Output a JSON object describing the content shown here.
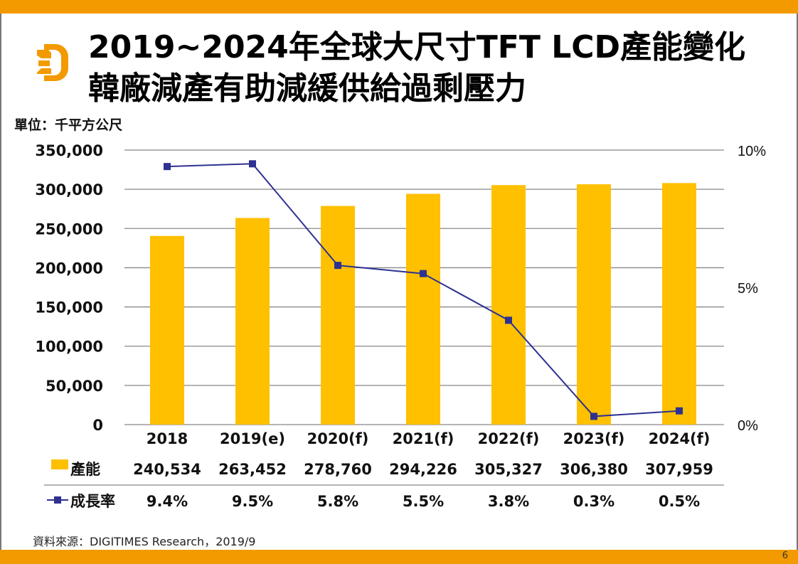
{
  "header": {
    "title_line1": "2019~2024年全球大尺寸TFT LCD產能變化",
    "title_line2": "韓廠減產有助減緩供給過剩壓力",
    "logo": "digitimes-d-logo"
  },
  "unit_label": "單位：千平方公尺",
  "source": "資料來源：DIGITIMES Research，2019/9",
  "page_number": "6",
  "colors": {
    "accent_bar": "#F29A00",
    "bar": "#FFC000",
    "line": "#2E3192",
    "grid": "#888888"
  },
  "chart_data": {
    "type": "bar",
    "title": "2019~2024年全球大尺寸TFT LCD產能變化",
    "categories": [
      "2018",
      "2019(e)",
      "2020(f)",
      "2021(f)",
      "2022(f)",
      "2023(f)",
      "2024(f)"
    ],
    "series": [
      {
        "name": "產能",
        "type": "bar",
        "axis": "left",
        "values": [
          240534,
          263452,
          278760,
          294226,
          305327,
          306380,
          307959
        ],
        "labels": [
          "240,534",
          "263,452",
          "278,760",
          "294,226",
          "305,327",
          "306,380",
          "307,959"
        ]
      },
      {
        "name": "成長率",
        "type": "line",
        "axis": "right",
        "marker": "square",
        "values": [
          9.4,
          9.5,
          5.8,
          5.5,
          3.8,
          0.3,
          0.5
        ],
        "labels": [
          "9.4%",
          "9.5%",
          "5.8%",
          "5.5%",
          "3.8%",
          "0.3%",
          "0.5%"
        ]
      }
    ],
    "y_left": {
      "label": "單位：千平方公尺",
      "lim": [
        0,
        350000
      ],
      "ticks": [
        0,
        50000,
        100000,
        150000,
        200000,
        250000,
        300000,
        350000
      ],
      "tick_labels": [
        "0",
        "50,000",
        "100,000",
        "150,000",
        "200,000",
        "250,000",
        "300,000",
        "350,000"
      ]
    },
    "y_right": {
      "lim": [
        0,
        10
      ],
      "ticks": [
        0,
        5,
        10
      ],
      "tick_labels": [
        "0%",
        "5%",
        "10%"
      ]
    },
    "grid": true,
    "legend": "data-table-below"
  }
}
